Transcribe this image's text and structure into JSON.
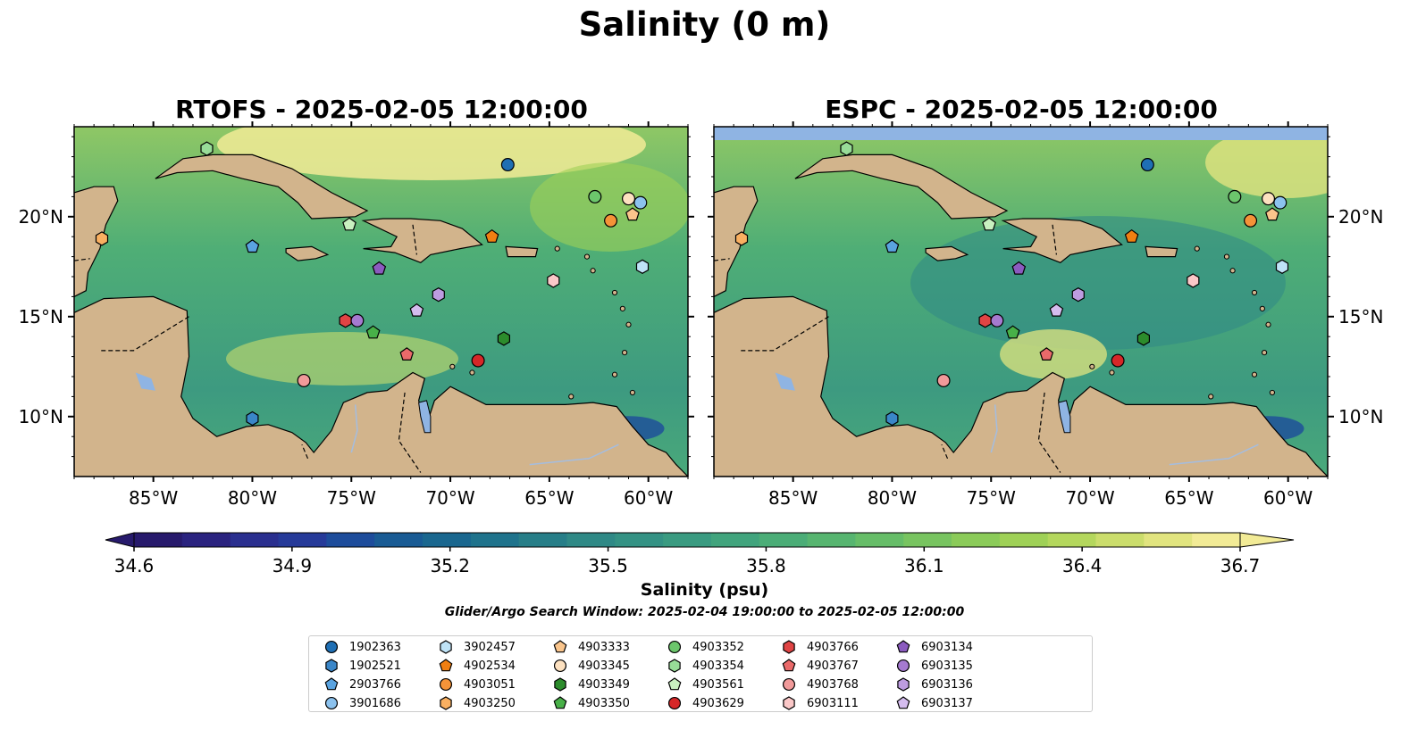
{
  "title": "Salinity (0 m)",
  "panels": [
    {
      "title": "RTOFS - 2025-02-05 12:00:00",
      "top_band": false
    },
    {
      "title": "ESPC - 2025-02-05 12:00:00",
      "top_band": true
    }
  ],
  "map": {
    "lon_ticks": [
      "85°W",
      "80°W",
      "75°W",
      "70°W",
      "65°W",
      "60°W"
    ],
    "lon_tick_values": [
      -85,
      -80,
      -75,
      -70,
      -65,
      -60
    ],
    "lat_ticks": [
      "20°N",
      "15°N",
      "10°N"
    ],
    "lat_tick_values": [
      20,
      15,
      10
    ],
    "lon_range": [
      -89,
      -58
    ],
    "lat_range": [
      7,
      24.5
    ],
    "land_color": "#d2b48c",
    "pacific_color": "#2b1a6b",
    "lake_color": "#8fb4e3",
    "river_color": "#a4bde0"
  },
  "colorbar": {
    "label": "Salinity (psu)",
    "ticks": [
      "34.6",
      "34.9",
      "35.2",
      "35.5",
      "35.8",
      "36.1",
      "36.4",
      "36.7"
    ],
    "tick_values": [
      34.6,
      34.9,
      35.2,
      35.5,
      35.8,
      36.1,
      36.4,
      36.7
    ],
    "range": [
      34.6,
      36.7
    ],
    "extend": "both",
    "colors": [
      "#271a6c",
      "#2a237f",
      "#2a2f8f",
      "#263a99",
      "#1d4c9b",
      "#195b94",
      "#1a678f",
      "#1f738c",
      "#277e88",
      "#2f8986",
      "#349284",
      "#3a9b81",
      "#41a47d",
      "#4bad77",
      "#57b570",
      "#66bd68",
      "#78c460",
      "#8bcb59",
      "#9fd157",
      "#b4d75d",
      "#cbdd6c",
      "#e1e47f",
      "#f2eb96"
    ]
  },
  "search_window": "Glider/Argo Search Window: 2025-02-04 19:00:00 to 2025-02-05 12:00:00",
  "legend": [
    {
      "id": "1902363",
      "shape": "circle",
      "color": "#1f6fb4"
    },
    {
      "id": "1902521",
      "shape": "hexagon",
      "color": "#3a86c8"
    },
    {
      "id": "2903766",
      "shape": "pentagon",
      "color": "#5aa3e0"
    },
    {
      "id": "3901686",
      "shape": "circle",
      "color": "#8cc2ee"
    },
    {
      "id": "3902457",
      "shape": "hexagon",
      "color": "#bfe3f7"
    },
    {
      "id": "4902534",
      "shape": "pentagon",
      "color": "#f07f12"
    },
    {
      "id": "4903051",
      "shape": "circle",
      "color": "#f59338"
    },
    {
      "id": "4903250",
      "shape": "hexagon",
      "color": "#f9b061"
    },
    {
      "id": "4903333",
      "shape": "pentagon",
      "color": "#fac58c"
    },
    {
      "id": "4903345",
      "shape": "circle",
      "color": "#fde1c0"
    },
    {
      "id": "4903349",
      "shape": "hexagon",
      "color": "#2c8c2c"
    },
    {
      "id": "4903350",
      "shape": "pentagon",
      "color": "#48b048"
    },
    {
      "id": "4903352",
      "shape": "circle",
      "color": "#6cc66c"
    },
    {
      "id": "4903354",
      "shape": "hexagon",
      "color": "#98dc98"
    },
    {
      "id": "4903561",
      "shape": "pentagon",
      "color": "#c8f0c0"
    },
    {
      "id": "4903629",
      "shape": "circle",
      "color": "#d62728"
    },
    {
      "id": "4903766",
      "shape": "hexagon",
      "color": "#e04444"
    },
    {
      "id": "4903767",
      "shape": "pentagon",
      "color": "#ea6a6a"
    },
    {
      "id": "4903768",
      "shape": "circle",
      "color": "#f19a9a"
    },
    {
      "id": "6903111",
      "shape": "hexagon",
      "color": "#fbc8c8"
    },
    {
      "id": "6903134",
      "shape": "pentagon",
      "color": "#8b5bbf"
    },
    {
      "id": "6903135",
      "shape": "circle",
      "color": "#a57ad0"
    },
    {
      "id": "6903136",
      "shape": "hexagon",
      "color": "#bd9ce0"
    },
    {
      "id": "6903137",
      "shape": "pentagon",
      "color": "#d4bcee"
    }
  ],
  "observations": [
    {
      "id": "1902363",
      "lon": -67.1,
      "lat": 22.6
    },
    {
      "id": "1902521",
      "lon": -80.0,
      "lat": 9.9
    },
    {
      "id": "2903766",
      "lon": -80.0,
      "lat": 18.5
    },
    {
      "id": "3901686",
      "lon": -60.4,
      "lat": 20.7
    },
    {
      "id": "3902457",
      "lon": -60.3,
      "lat": 17.5
    },
    {
      "id": "4902534",
      "lon": -67.9,
      "lat": 19.0
    },
    {
      "id": "4903051",
      "lon": -61.9,
      "lat": 19.8
    },
    {
      "id": "4903250",
      "lon": -87.6,
      "lat": 18.9
    },
    {
      "id": "4903333",
      "lon": -60.8,
      "lat": 20.1
    },
    {
      "id": "4903345",
      "lon": -61.0,
      "lat": 20.9
    },
    {
      "id": "4903349",
      "lon": -67.3,
      "lat": 13.9
    },
    {
      "id": "4903350",
      "lon": -73.9,
      "lat": 14.2
    },
    {
      "id": "4903352",
      "lon": -62.7,
      "lat": 21.0
    },
    {
      "id": "4903354",
      "lon": -82.3,
      "lat": 23.4
    },
    {
      "id": "4903561",
      "lon": -75.1,
      "lat": 19.6
    },
    {
      "id": "4903629",
      "lon": -68.6,
      "lat": 12.8
    },
    {
      "id": "4903766",
      "lon": -75.3,
      "lat": 14.8
    },
    {
      "id": "4903767",
      "lon": -72.2,
      "lat": 13.1
    },
    {
      "id": "4903768",
      "lon": -77.4,
      "lat": 11.8
    },
    {
      "id": "6903111",
      "lon": -64.8,
      "lat": 16.8
    },
    {
      "id": "6903134",
      "lon": -73.6,
      "lat": 17.4
    },
    {
      "id": "6903135",
      "lon": -74.7,
      "lat": 14.8
    },
    {
      "id": "6903136",
      "lon": -70.6,
      "lat": 16.1
    },
    {
      "id": "6903137",
      "lon": -71.7,
      "lat": 15.3
    }
  ]
}
